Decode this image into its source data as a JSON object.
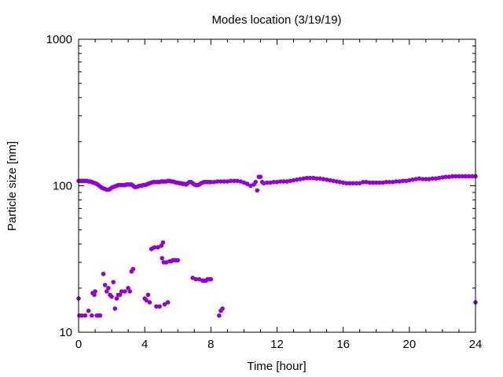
{
  "chart_data": {
    "type": "scatter",
    "title": "Modes location (3/19/19)",
    "xlabel": "Time [hour]",
    "ylabel": "Particle size [nm]",
    "xlim": [
      0,
      24
    ],
    "ylim": [
      10,
      1000
    ],
    "yscale": "log",
    "xticks": [
      0,
      4,
      8,
      12,
      16,
      20,
      24
    ],
    "xtick_labels": [
      "0",
      "4",
      "8",
      "12",
      "16",
      "20",
      "24"
    ],
    "yticks": [
      10,
      100,
      1000
    ],
    "ytick_labels": [
      "10",
      "100",
      "1000"
    ],
    "grid": false,
    "legend": "none",
    "marker_color": "#9400d3",
    "series": [
      {
        "values": [
          [
            0.0,
            108
          ],
          [
            0.1,
            108
          ],
          [
            0.2,
            108
          ],
          [
            0.3,
            108
          ],
          [
            0.4,
            108
          ],
          [
            0.5,
            108
          ],
          [
            0.6,
            107
          ],
          [
            0.7,
            107
          ],
          [
            0.8,
            106
          ],
          [
            0.9,
            105
          ],
          [
            1.0,
            104
          ],
          [
            1.1,
            103
          ],
          [
            1.2,
            101
          ],
          [
            1.3,
            99
          ],
          [
            1.4,
            97
          ],
          [
            1.5,
            96
          ],
          [
            1.6,
            95
          ],
          [
            1.7,
            94
          ],
          [
            1.8,
            94
          ],
          [
            1.9,
            95
          ],
          [
            2.0,
            97
          ],
          [
            2.1,
            98
          ],
          [
            2.2,
            99
          ],
          [
            2.3,
            100
          ],
          [
            2.4,
            101
          ],
          [
            2.5,
            101
          ],
          [
            2.6,
            101
          ],
          [
            2.7,
            101
          ],
          [
            2.8,
            101
          ],
          [
            2.9,
            102
          ],
          [
            3.0,
            102
          ],
          [
            3.1,
            102
          ],
          [
            3.2,
            102
          ],
          [
            3.3,
            100
          ],
          [
            3.4,
            98
          ],
          [
            3.5,
            98
          ],
          [
            3.6,
            99
          ],
          [
            3.7,
            100
          ],
          [
            3.8,
            100
          ],
          [
            3.9,
            101
          ],
          [
            4.0,
            101
          ],
          [
            4.1,
            102
          ],
          [
            4.2,
            103
          ],
          [
            4.3,
            104
          ],
          [
            4.4,
            105
          ],
          [
            4.5,
            106
          ],
          [
            4.6,
            106
          ],
          [
            4.7,
            106
          ],
          [
            4.8,
            106
          ],
          [
            4.9,
            106
          ],
          [
            5.0,
            107
          ],
          [
            5.1,
            107
          ],
          [
            5.2,
            107
          ],
          [
            5.3,
            107
          ],
          [
            5.4,
            108
          ],
          [
            5.5,
            108
          ],
          [
            5.6,
            107
          ],
          [
            5.7,
            107
          ],
          [
            5.8,
            106
          ],
          [
            5.9,
            105
          ],
          [
            6.0,
            105
          ],
          [
            6.1,
            104
          ],
          [
            6.2,
            104
          ],
          [
            6.3,
            103
          ],
          [
            6.4,
            103
          ],
          [
            6.5,
            102
          ],
          [
            6.6,
            104
          ],
          [
            6.7,
            106
          ],
          [
            6.8,
            106
          ],
          [
            6.9,
            104
          ],
          [
            7.0,
            102
          ],
          [
            7.1,
            101
          ],
          [
            7.2,
            101
          ],
          [
            7.3,
            102
          ],
          [
            7.4,
            104
          ],
          [
            7.5,
            105
          ],
          [
            7.6,
            106
          ],
          [
            7.7,
            106
          ],
          [
            7.8,
            106
          ],
          [
            7.9,
            106
          ],
          [
            8.0,
            106
          ],
          [
            8.2,
            106
          ],
          [
            8.4,
            107
          ],
          [
            8.6,
            107
          ],
          [
            8.8,
            107
          ],
          [
            9.0,
            107
          ],
          [
            9.2,
            108
          ],
          [
            9.4,
            108
          ],
          [
            9.6,
            108
          ],
          [
            9.8,
            107
          ],
          [
            10.0,
            105
          ],
          [
            10.2,
            103
          ],
          [
            10.4,
            100
          ],
          [
            10.6,
            102
          ],
          [
            10.7,
            106
          ],
          [
            10.8,
            93
          ],
          [
            10.9,
            115
          ],
          [
            11.0,
            115
          ],
          [
            11.1,
            106
          ],
          [
            11.2,
            104
          ],
          [
            11.4,
            105
          ],
          [
            11.6,
            105
          ],
          [
            11.8,
            106
          ],
          [
            12.0,
            106
          ],
          [
            12.2,
            107
          ],
          [
            12.4,
            107
          ],
          [
            12.6,
            107
          ],
          [
            12.8,
            108
          ],
          [
            13.0,
            109
          ],
          [
            13.2,
            110
          ],
          [
            13.4,
            111
          ],
          [
            13.6,
            112
          ],
          [
            13.8,
            113
          ],
          [
            14.0,
            113
          ],
          [
            14.2,
            113
          ],
          [
            14.4,
            112
          ],
          [
            14.6,
            112
          ],
          [
            14.8,
            111
          ],
          [
            15.0,
            110
          ],
          [
            15.2,
            109
          ],
          [
            15.4,
            108
          ],
          [
            15.6,
            107
          ],
          [
            15.8,
            106
          ],
          [
            16.0,
            105
          ],
          [
            16.2,
            104
          ],
          [
            16.4,
            104
          ],
          [
            16.6,
            104
          ],
          [
            16.8,
            104
          ],
          [
            17.0,
            104
          ],
          [
            17.2,
            106
          ],
          [
            17.4,
            106
          ],
          [
            17.6,
            105
          ],
          [
            17.8,
            105
          ],
          [
            18.0,
            105
          ],
          [
            18.2,
            105
          ],
          [
            18.4,
            105
          ],
          [
            18.6,
            106
          ],
          [
            18.8,
            106
          ],
          [
            19.0,
            106
          ],
          [
            19.2,
            107
          ],
          [
            19.4,
            107
          ],
          [
            19.6,
            108
          ],
          [
            19.8,
            108
          ],
          [
            20.0,
            109
          ],
          [
            20.2,
            110
          ],
          [
            20.4,
            111
          ],
          [
            20.6,
            112
          ],
          [
            20.8,
            111
          ],
          [
            21.0,
            111
          ],
          [
            21.2,
            111
          ],
          [
            21.4,
            112
          ],
          [
            21.6,
            112
          ],
          [
            21.8,
            113
          ],
          [
            22.0,
            114
          ],
          [
            22.2,
            115
          ],
          [
            22.4,
            115
          ],
          [
            22.6,
            116
          ],
          [
            22.8,
            116
          ],
          [
            23.0,
            116
          ],
          [
            23.2,
            116
          ],
          [
            23.4,
            116
          ],
          [
            23.6,
            116
          ],
          [
            23.8,
            116
          ],
          [
            24.0,
            116
          ],
          [
            0.0,
            17
          ],
          [
            0.05,
            13
          ],
          [
            0.2,
            13
          ],
          [
            0.4,
            13
          ],
          [
            0.6,
            14
          ],
          [
            0.8,
            13
          ],
          [
            0.85,
            18.5
          ],
          [
            0.95,
            18
          ],
          [
            1.0,
            19
          ],
          [
            1.1,
            13
          ],
          [
            1.2,
            13
          ],
          [
            1.3,
            13
          ],
          [
            1.5,
            25
          ],
          [
            1.6,
            21
          ],
          [
            1.7,
            19
          ],
          [
            1.8,
            20
          ],
          [
            1.9,
            18
          ],
          [
            2.0,
            17.5
          ],
          [
            2.1,
            22
          ],
          [
            2.2,
            14.5
          ],
          [
            2.3,
            17
          ],
          [
            2.4,
            18
          ],
          [
            2.5,
            18
          ],
          [
            2.6,
            19
          ],
          [
            2.8,
            19
          ],
          [
            3.0,
            20
          ],
          [
            3.1,
            19
          ],
          [
            3.2,
            26
          ],
          [
            3.3,
            27
          ],
          [
            4.0,
            17
          ],
          [
            4.1,
            16.5
          ],
          [
            4.2,
            18
          ],
          [
            4.3,
            16
          ],
          [
            4.4,
            37
          ],
          [
            4.5,
            37.5
          ],
          [
            4.6,
            38
          ],
          [
            4.7,
            15
          ],
          [
            4.8,
            38
          ],
          [
            4.9,
            15
          ],
          [
            5.0,
            39
          ],
          [
            5.05,
            32
          ],
          [
            5.1,
            41
          ],
          [
            5.15,
            30
          ],
          [
            5.2,
            15.5
          ],
          [
            5.3,
            30
          ],
          [
            5.4,
            16
          ],
          [
            5.5,
            30.5
          ],
          [
            5.6,
            30.5
          ],
          [
            5.7,
            31
          ],
          [
            5.8,
            31
          ],
          [
            5.9,
            31
          ],
          [
            6.0,
            31
          ],
          [
            6.9,
            23.5
          ],
          [
            7.1,
            23
          ],
          [
            7.3,
            23
          ],
          [
            7.5,
            22.5
          ],
          [
            7.6,
            22.5
          ],
          [
            7.7,
            22.5
          ],
          [
            7.8,
            23
          ],
          [
            7.9,
            23
          ],
          [
            8.0,
            23
          ],
          [
            8.5,
            13
          ],
          [
            8.6,
            14
          ],
          [
            8.7,
            14.5
          ],
          [
            24.0,
            16
          ]
        ]
      }
    ]
  }
}
